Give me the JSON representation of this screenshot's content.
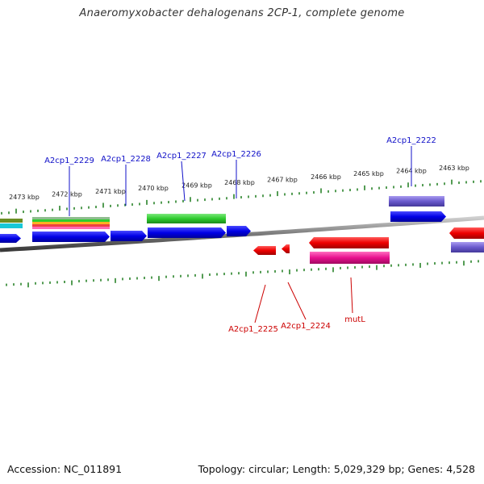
{
  "title": "Anaeromyxobacter dehalogenans 2CP-1, complete genome",
  "footer": {
    "accession": "Accession: NC_011891",
    "summary": "Topology: circular; Length: 5,029,329 bp; Genes: 4,528"
  },
  "colors": {
    "forward_label": "#1010c8",
    "reverse_label": "#cc0000",
    "tick": "#1a7a1a",
    "backbone": "#7a7a7a",
    "cds_forward": "#0000e6",
    "cds_reverse": "#ee0000",
    "rna": "#2ecc2e",
    "lavender": "#6a5acd",
    "magenta": "#e8108e"
  },
  "scale_labels": [
    "2473 kbp",
    "2472 kbp",
    "2471 kbp",
    "2470 kbp",
    "2469 kbp",
    "2468 kbp",
    "2467 kbp",
    "2466 kbp",
    "2465 kbp",
    "2464 kbp",
    "2463 kbp"
  ],
  "forward_genes": [
    "A2cp1_2229",
    "A2cp1_2228",
    "A2cp1_2227",
    "A2cp1_2226",
    "A2cp1_2222"
  ],
  "reverse_genes": [
    "A2cp1_2225",
    "A2cp1_2224",
    "mutL"
  ]
}
